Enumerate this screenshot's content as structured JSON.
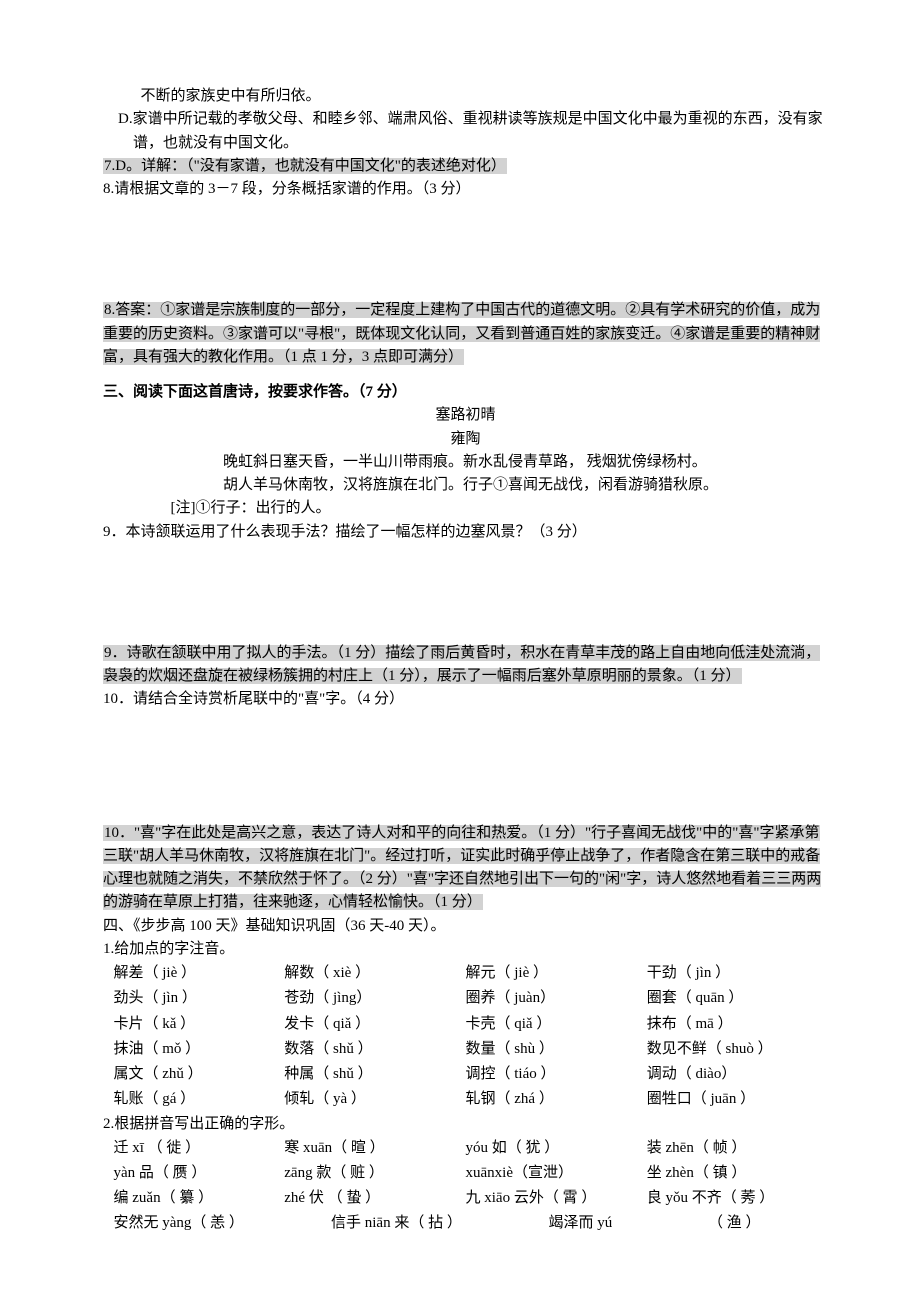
{
  "para": {
    "cont": "不断的家族史中有所归依。",
    "d": "D.家谱中所记载的孝敬父母、和睦乡邻、端肃风俗、重视耕读等族规是中国文化中最为重视的东西，没有家谱，也就没有中国文化。",
    "ans7": "7.D。详解：（\"没有家谱，也就没有中国文化\"的表述绝对化）",
    "q8": "8.请根据文章的 3－7 段，分条概括家谱的作用。（3 分）",
    "ans8": "8.答案：①家谱是宗族制度的一部分，一定程度上建构了中国古代的道德文明。②具有学术研究的价值，成为重要的历史资料。③家谱可以\"寻根\"，既体现文化认同，又看到普通百姓的家族变迁。④家谱是重要的精神财富，具有强大的教化作用。（1 点 1 分，3 点即可满分）"
  },
  "sec3": {
    "head": "三、阅读下面这首唐诗，按要求作答。（7 分）",
    "title": "塞路初晴",
    "author": "雍陶",
    "l1": "晚虹斜日塞天昏，一半山川带雨痕。新水乱侵青草路，  残烟犹傍绿杨村。",
    "l2": "胡人羊马休南牧，汉将旌旗在北门。行子①喜闻无战伐，闲看游骑猎秋原。",
    "note": "[注]①行子：出行的人。",
    "q9": "9．本诗颔联运用了什么表现手法？描绘了一幅怎样的边塞风景？（3 分）",
    "ans9": "9．诗歌在颔联中用了拟人的手法。（1 分）描绘了雨后黄昏时，积水在青草丰茂的路上自由地向低洼处流淌，袅袅的炊烟还盘旋在被绿杨簇拥的村庄上（1 分），展示了一幅雨后塞外草原明丽的景象。（1 分）",
    "q10": "10．请结合全诗赏析尾联中的\"喜\"字。（4 分）",
    "ans10": "10．\"喜\"字在此处是高兴之意，表达了诗人对和平的向往和热爱。（1 分）\"行子喜闻无战伐\"中的\"喜\"字紧承第三联\"胡人羊马休南牧，汉将旌旗在北门\"。经过打听，证实此时确乎停止战争了，作者隐含在第三联中的戒备心理也就随之消失，不禁欣然于怀了。（2 分）\"喜\"字还自然地引出下一句的\"闲\"字，诗人悠然地看着三三两两的游骑在草原上打猎，往来驰逐，心情轻松愉快。（1 分）"
  },
  "sec4": {
    "head": "四、《步步高 100 天》基础知识巩固（36 天-40 天）。",
    "sub1": "1.给加点的字注音。",
    "rows1": [
      [
        "解差（ jiè ）",
        "解数（ xiè ）",
        "解元（ jiè ）",
        "干劲（ jìn ）"
      ],
      [
        "劲头（ jìn ）",
        "苍劲（ jìng）",
        "圈养（ juàn）",
        "圈套（ quān ）"
      ],
      [
        "卡片（  kǎ ）",
        "发卡（ qiǎ ）",
        "卡壳（ qiǎ ）",
        "抹布（  mā  ）"
      ],
      [
        "抹油（  mǒ ）",
        "数落（ shǔ ）",
        "数量（ shù ）",
        "数见不鲜（ shuò ）"
      ],
      [
        "属文（ zhǔ ）",
        "种属（ shǔ ）",
        "调控（ tiáo ）",
        "调动（ diào）"
      ],
      [
        "轧账（  gá ）",
        "倾轧（  yà ）",
        "轧钢（ zhá ）",
        "圈牲口（ juān ）"
      ]
    ],
    "sub2": "2.根据拼音写出正确的字形。",
    "rows2": [
      [
        "迁 xī   （ 徙 ）",
        "寒 xuān（ 暄 ）",
        "yóu 如（ 犹 ）",
        "装 zhēn（ 帧 ）"
      ],
      [
        "yàn 品（ 赝 ）",
        "zāng 款（ 赃 ）",
        "xuānxiè（宣泄）",
        "坐 zhèn（ 镇 ）"
      ],
      [
        "编 zuǎn（ 纂 ）",
        "zhé 伏 （ 蛰 ）",
        "九 xiāo 云外（ 霄 ）",
        "良 yǒu 不齐（ 莠 ）"
      ]
    ],
    "row3": [
      "安然无 yàng（ 恙 ）",
      "信手 niān 来（ 拈 ）",
      "竭泽而 yú",
      "（ 渔 ）"
    ]
  },
  "style": {
    "bg": "#ffffff",
    "highlight_bg": "#d2d2d2",
    "text_color": "#000000",
    "font_family": "SimSun",
    "base_fontsize": 15
  }
}
